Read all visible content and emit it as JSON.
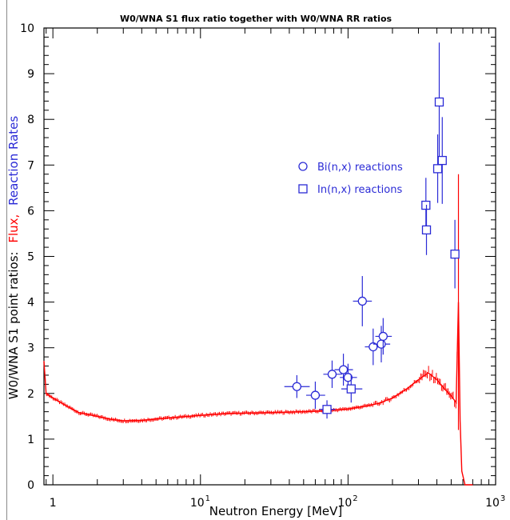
{
  "chart_data": {
    "type": "scatter",
    "title": "W0/WNA S1 flux ratio together with W0/WNA RR ratios",
    "xlabel": "Neutron Energy [MeV]",
    "ylabel": {
      "prefix": "W0/WNA S1 point ratios:",
      "flux": "Flux,",
      "rates": "Reaction Rates"
    },
    "xscale": "log",
    "xlim": [
      0.87,
      1000
    ],
    "ylim": [
      0,
      10
    ],
    "x_ticks": [
      {
        "value": 1,
        "label": "1"
      },
      {
        "value": 10,
        "label": "10",
        "sup": "1"
      },
      {
        "value": 100,
        "label": "10",
        "sup": "2"
      },
      {
        "value": 1000,
        "label": "10",
        "sup": "3"
      }
    ],
    "y_ticks": [
      "0",
      "1",
      "2",
      "3",
      "4",
      "5",
      "6",
      "7",
      "8",
      "9",
      "10"
    ],
    "grid": false,
    "legend_position": "upper-middle",
    "colors": {
      "flux": "#ff0000",
      "reactions": "#2b2bd6",
      "axes": "#000000"
    },
    "series": [
      {
        "name": "Bi(n,x) reactions",
        "marker": "circle",
        "points": [
          {
            "x": 45,
            "y": 2.15,
            "xerr": [
              8,
              10
            ],
            "yerr": 0.25
          },
          {
            "x": 60,
            "y": 1.96,
            "xerr": [
              8,
              10
            ],
            "yerr": 0.3
          },
          {
            "x": 78,
            "y": 2.42,
            "xerr": [
              10,
              13
            ],
            "yerr": 0.3
          },
          {
            "x": 93,
            "y": 2.52,
            "xerr": [
              12,
              15
            ],
            "yerr": 0.35
          },
          {
            "x": 100,
            "y": 2.35,
            "xerr": [
              12,
              15
            ],
            "yerr": 0.3
          },
          {
            "x": 125,
            "y": 4.02,
            "xerr": [
              17,
              20
            ],
            "yerr": 0.55
          },
          {
            "x": 148,
            "y": 3.02,
            "xerr": [
              18,
              22
            ],
            "yerr": 0.4
          },
          {
            "x": 168,
            "y": 3.08,
            "xerr": [
              20,
              25
            ],
            "yerr": 0.4
          },
          {
            "x": 173,
            "y": 3.25,
            "xerr": [
              20,
              25
            ],
            "yerr": 0.4
          }
        ]
      },
      {
        "name": "In(n,x) reactions",
        "marker": "square",
        "points": [
          {
            "x": 72,
            "y": 1.65,
            "xerr": [
              8,
              10
            ],
            "yerr": 0.2
          },
          {
            "x": 105,
            "y": 2.1,
            "xerr": [
              15,
              20
            ],
            "yerr": 0.3
          },
          {
            "x": 337,
            "y": 6.12,
            "xerr": [
              18,
              22
            ],
            "yerr": 0.6
          },
          {
            "x": 340,
            "y": 5.58,
            "xerr": [
              18,
              22
            ],
            "yerr": 0.55
          },
          {
            "x": 405,
            "y": 6.92,
            "xerr": [
              20,
              25
            ],
            "yerr": 0.75
          },
          {
            "x": 415,
            "y": 8.38,
            "xerr": [
              20,
              25
            ],
            "yerr": 1.3
          },
          {
            "x": 435,
            "y": 7.1,
            "xerr": [
              20,
              25
            ],
            "yerr": 0.95
          },
          {
            "x": 530,
            "y": 5.05,
            "xerr": [
              20,
              25
            ],
            "yerr": 0.75
          }
        ]
      }
    ],
    "flux_ratio": [
      [
        0.87,
        2.7
      ],
      [
        0.9,
        2.0
      ],
      [
        1.0,
        1.9
      ],
      [
        1.2,
        1.75
      ],
      [
        1.5,
        1.58
      ],
      [
        2.0,
        1.5
      ],
      [
        2.5,
        1.43
      ],
      [
        3.0,
        1.4
      ],
      [
        4.0,
        1.41
      ],
      [
        5.0,
        1.44
      ],
      [
        7.0,
        1.48
      ],
      [
        10.0,
        1.52
      ],
      [
        15.0,
        1.56
      ],
      [
        20.0,
        1.57
      ],
      [
        30.0,
        1.58
      ],
      [
        50.0,
        1.6
      ],
      [
        70.0,
        1.62
      ],
      [
        100.0,
        1.66
      ],
      [
        130.0,
        1.72
      ],
      [
        160.0,
        1.78
      ],
      [
        200.0,
        1.9
      ],
      [
        250.0,
        2.1
      ],
      [
        300.0,
        2.3
      ],
      [
        350.0,
        2.45
      ],
      [
        400.0,
        2.3
      ],
      [
        450.0,
        2.1
      ],
      [
        500.0,
        1.95
      ],
      [
        540.0,
        1.8
      ],
      [
        560.0,
        4.0
      ],
      [
        575.0,
        1.4
      ],
      [
        590.0,
        0.3
      ],
      [
        620.0,
        0.0
      ],
      [
        700.0,
        0.0
      ]
    ]
  }
}
